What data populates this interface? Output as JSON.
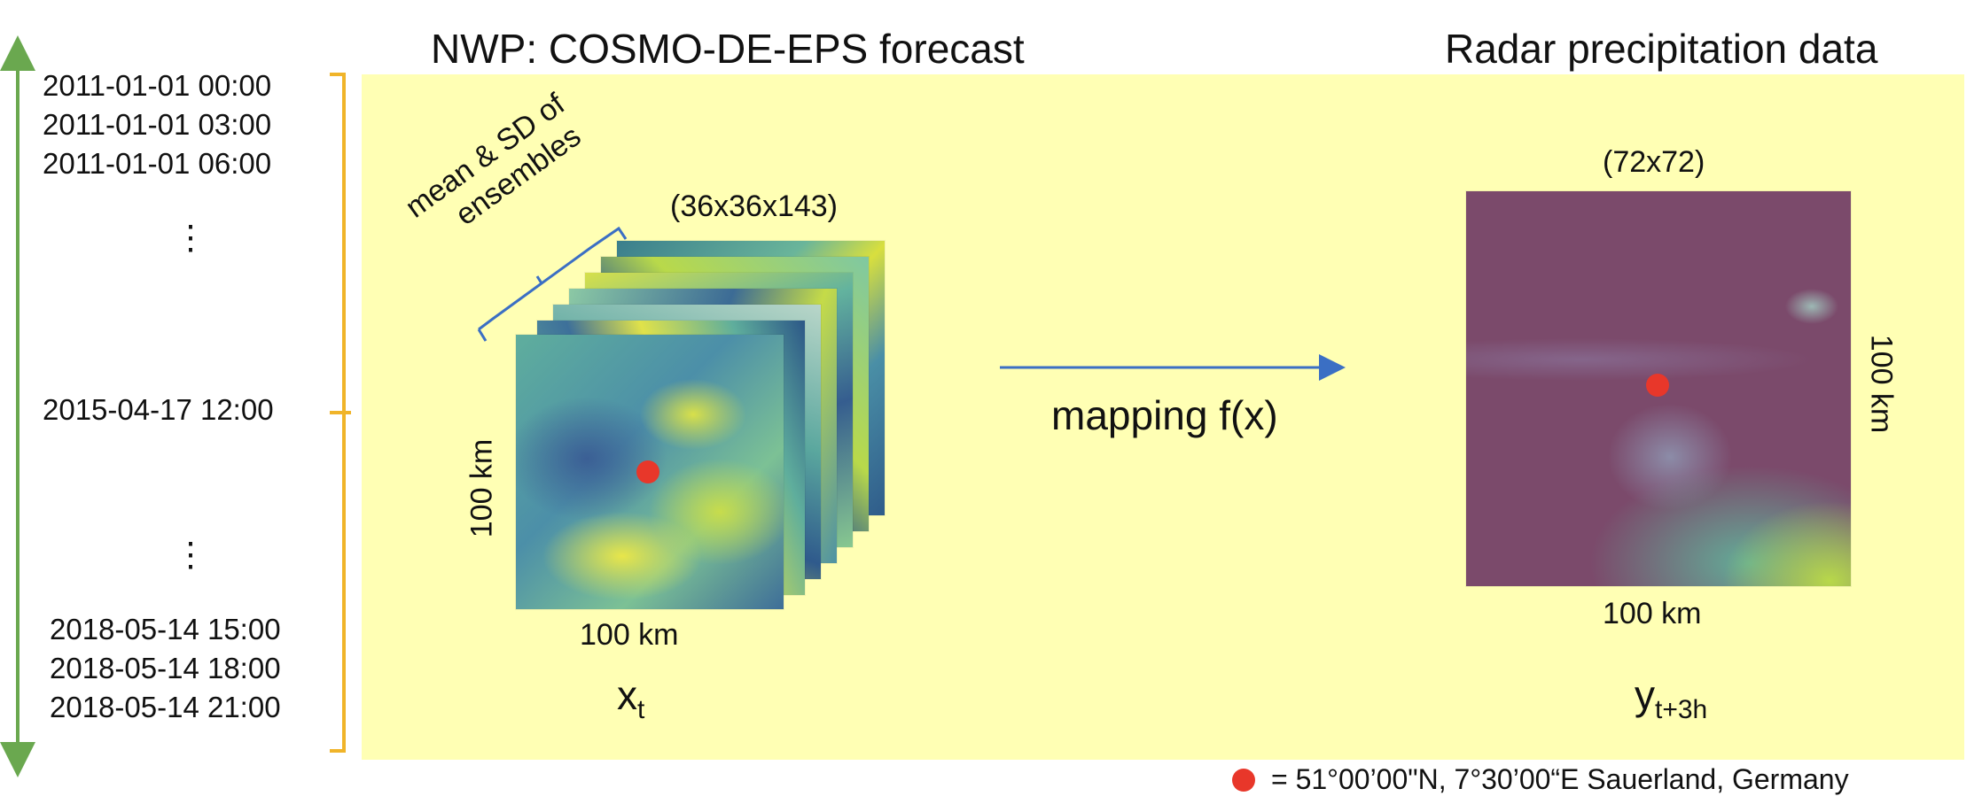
{
  "titles": {
    "nwp": "NWP: COSMO-DE-EPS forecast",
    "radar": "Radar precipitation data"
  },
  "timeline": {
    "dates_top": [
      "2011-01-01 00:00",
      "2011-01-01 03:00",
      "2011-01-01 06:00"
    ],
    "date_mid": "2015-04-17 12:00",
    "dates_bottom": [
      "2018-05-14 15:00",
      "2018-05-14 18:00",
      "2018-05-14 21:00"
    ],
    "ellipsis": "⋮"
  },
  "input": {
    "dims": "(36x36x143)",
    "stack_label_line1": "mean & SD of",
    "stack_label_line2": "ensembles",
    "side_label": "100 km",
    "bottom_label": "100 km",
    "var_main": "x",
    "var_sub": "t"
  },
  "mapping": {
    "label": "mapping f(x)"
  },
  "output": {
    "dims": "(72x72)",
    "side_label": "100 km",
    "bottom_label": "100 km",
    "var_main": "y",
    "var_sub": "t+3h"
  },
  "legend": {
    "text": "= 51°00’00\"N, 7°30’00“E Sauerland, Germany"
  },
  "colors": {
    "panel": "#ffffb4",
    "timeline_arrow": "#6aa84f",
    "bracket": "#f0b429",
    "mapping_arrow": "#3b6fc4",
    "brace": "#3b6fc4",
    "location_dot": "#e8372a",
    "radar_background": "#7b4a6b"
  }
}
